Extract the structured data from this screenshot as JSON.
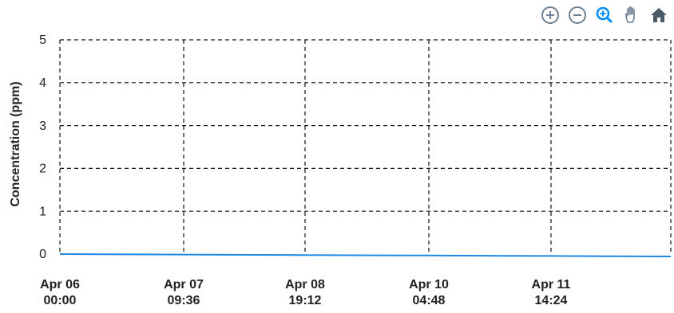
{
  "toolbar": {
    "icons": [
      "zoom-in-icon",
      "zoom-out-icon",
      "selection-zoom-icon",
      "pan-icon",
      "home-icon"
    ],
    "accent": "#008ffb",
    "icon_color": "#6e8192",
    "active_color": "#008ffb",
    "home_color": "#4a5a66"
  },
  "chart_data": {
    "type": "line",
    "title": "",
    "xlabel": "",
    "ylabel": "Concentration (ppm)",
    "ylim": [
      0,
      5
    ],
    "yticks": [
      "0",
      "1",
      "2",
      "3",
      "4",
      "5"
    ],
    "x_tick_labels": [
      {
        "date": "Apr 06",
        "time": "00:00"
      },
      {
        "date": "Apr 07",
        "time": "09:36"
      },
      {
        "date": "Apr 08",
        "time": "19:12"
      },
      {
        "date": "Apr 10",
        "time": "04:48"
      },
      {
        "date": "Apr 11",
        "time": "14:24"
      }
    ],
    "x": [
      "2023-04-06T00:00",
      "2023-04-07T09:36",
      "2023-04-08T19:12",
      "2023-04-10T04:48",
      "2023-04-11T14:24",
      "2023-04-12T00:00"
    ],
    "series": [
      {
        "values": [
          0.0,
          0.0,
          0.0,
          0.0,
          0.0,
          0.0
        ],
        "color": "#1e88e5"
      }
    ],
    "grid": true,
    "legend": "none"
  }
}
